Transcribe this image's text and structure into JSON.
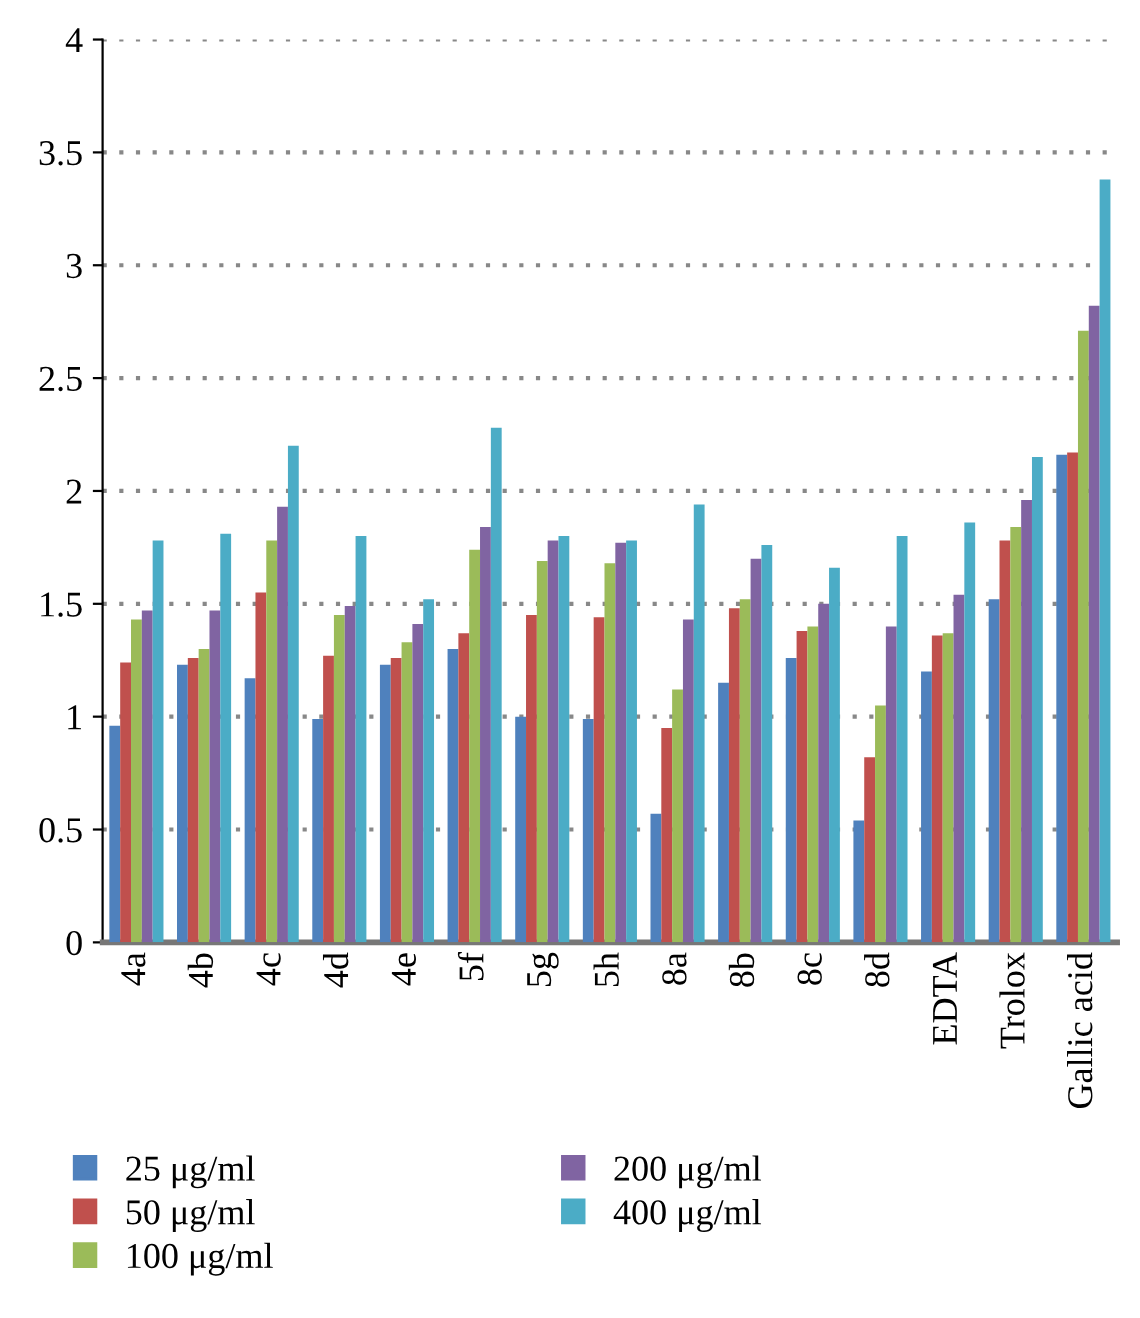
{
  "chart_data": {
    "type": "bar",
    "categories": [
      "4a",
      "4b",
      "4c",
      "4d",
      "4e",
      "5f",
      "5g",
      "5h",
      "8a",
      "8b",
      "8c",
      "8d",
      "EDTA",
      "Trolox",
      "Gallic acid"
    ],
    "series": [
      {
        "name": "25 μg/ml",
        "color": "#4f81bd",
        "values": [
          0.96,
          1.23,
          1.17,
          0.99,
          1.23,
          1.3,
          1.0,
          0.99,
          0.57,
          1.15,
          1.26,
          0.54,
          1.2,
          1.52,
          2.16
        ]
      },
      {
        "name": "50 μg/ml",
        "color": "#c0504d",
        "values": [
          1.24,
          1.26,
          1.55,
          1.27,
          1.26,
          1.37,
          1.45,
          1.44,
          0.95,
          1.48,
          1.38,
          0.82,
          1.36,
          1.78,
          2.17
        ]
      },
      {
        "name": "100 μg/ml",
        "color": "#9bbb59",
        "values": [
          1.43,
          1.3,
          1.78,
          1.45,
          1.33,
          1.74,
          1.69,
          1.68,
          1.12,
          1.52,
          1.4,
          1.05,
          1.37,
          1.84,
          2.71
        ]
      },
      {
        "name": "200 μg/ml",
        "color": "#8064a2",
        "values": [
          1.47,
          1.47,
          1.93,
          1.49,
          1.41,
          1.84,
          1.78,
          1.77,
          1.43,
          1.7,
          1.5,
          1.4,
          1.54,
          1.96,
          2.82
        ]
      },
      {
        "name": "400 μg/ml",
        "color": "#4bacc6",
        "values": [
          1.78,
          1.81,
          2.2,
          1.8,
          1.52,
          2.28,
          1.8,
          1.78,
          1.94,
          1.76,
          1.66,
          1.8,
          1.86,
          2.15,
          3.38
        ]
      }
    ],
    "ylim": [
      0,
      4
    ],
    "yticks": [
      0,
      0.5,
      1,
      1.5,
      2,
      2.5,
      3,
      3.5,
      4
    ],
    "grid": "y",
    "legend": "bottom"
  }
}
